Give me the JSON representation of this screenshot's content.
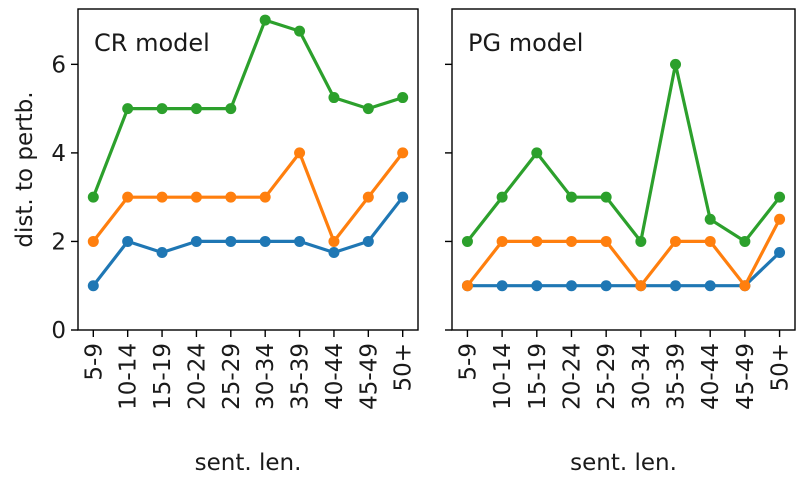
{
  "chart_data": [
    {
      "type": "line",
      "title": "CR model",
      "xlabel": "sent. len.",
      "ylabel": "dist. to pertb.",
      "categories": [
        "5-9",
        "10-14",
        "15-19",
        "20-24",
        "25-29",
        "30-34",
        "35-39",
        "40-44",
        "45-49",
        "50+"
      ],
      "ylim": [
        0,
        7.25
      ],
      "yticks": [
        0,
        2,
        4,
        6
      ],
      "grid": false,
      "series": [
        {
          "color": "#1f77b4",
          "values": [
            1,
            2,
            1.75,
            2,
            2,
            2,
            2,
            1.75,
            2,
            3
          ]
        },
        {
          "color": "#ff7f0e",
          "values": [
            2,
            3,
            3,
            3,
            3,
            3,
            4,
            2,
            3,
            4
          ]
        },
        {
          "color": "#2ca02c",
          "values": [
            3,
            5,
            5,
            5,
            5,
            7,
            6.75,
            5.25,
            5,
            5.25
          ]
        }
      ]
    },
    {
      "type": "line",
      "title": "PG model",
      "xlabel": "sent. len.",
      "ylabel": "",
      "categories": [
        "5-9",
        "10-14",
        "15-19",
        "20-24",
        "25-29",
        "30-34",
        "35-39",
        "40-44",
        "45-49",
        "50+"
      ],
      "ylim": [
        0,
        7.25
      ],
      "yticks": [
        0,
        2,
        4,
        6
      ],
      "grid": false,
      "series": [
        {
          "color": "#1f77b4",
          "values": [
            1,
            1,
            1,
            1,
            1,
            1,
            1,
            1,
            1,
            1.75
          ]
        },
        {
          "color": "#ff7f0e",
          "values": [
            1,
            2,
            2,
            2,
            2,
            1,
            2,
            2,
            1,
            2.5
          ]
        },
        {
          "color": "#2ca02c",
          "values": [
            2,
            3,
            4,
            3,
            3,
            2,
            6,
            2.5,
            2,
            3
          ]
        }
      ]
    }
  ]
}
